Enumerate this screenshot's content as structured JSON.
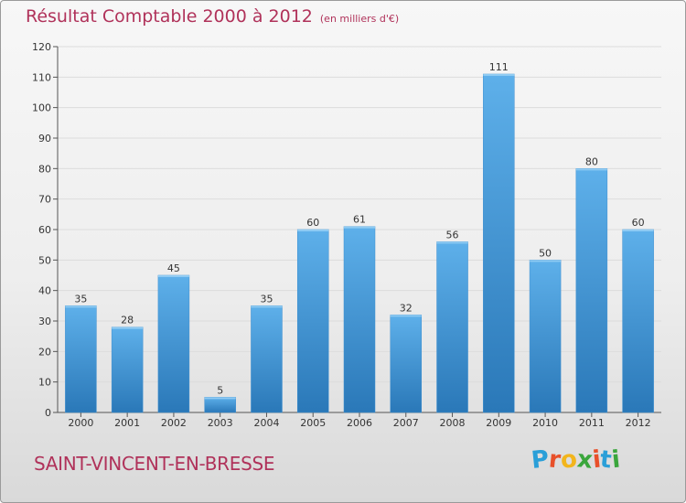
{
  "header": {
    "title": "Résultat Comptable 2000 à 2012",
    "subtitle": "(en milliers d'€)"
  },
  "footer": {
    "place": "SAINT-VINCENT-EN-BRESSE",
    "logo_text": "Proxiti",
    "logo_letters": [
      "P",
      "r",
      "o",
      "x",
      "i",
      "t",
      "i"
    ],
    "logo_colors": [
      "#2a9fd8",
      "#e8502a",
      "#f2b51c",
      "#3aa63c",
      "#e8502a",
      "#2a9fd8",
      "#3aa63c"
    ]
  },
  "chart_data": {
    "type": "bar",
    "categories": [
      "2000",
      "2001",
      "2002",
      "2003",
      "2004",
      "2005",
      "2006",
      "2007",
      "2008",
      "2009",
      "2010",
      "2011",
      "2012"
    ],
    "values": [
      35,
      28,
      45,
      5,
      35,
      60,
      61,
      32,
      56,
      111,
      50,
      80,
      60
    ],
    "title": "Résultat Comptable 2000 à 2012",
    "xlabel": "",
    "ylabel": "",
    "ylim": [
      0,
      120
    ],
    "yticks": [
      0,
      10,
      20,
      30,
      40,
      50,
      60,
      70,
      80,
      90,
      100,
      110,
      120
    ],
    "grid": true,
    "bar_color": "#4f9fdc",
    "bar_color_dark": "#2f7fc0"
  }
}
